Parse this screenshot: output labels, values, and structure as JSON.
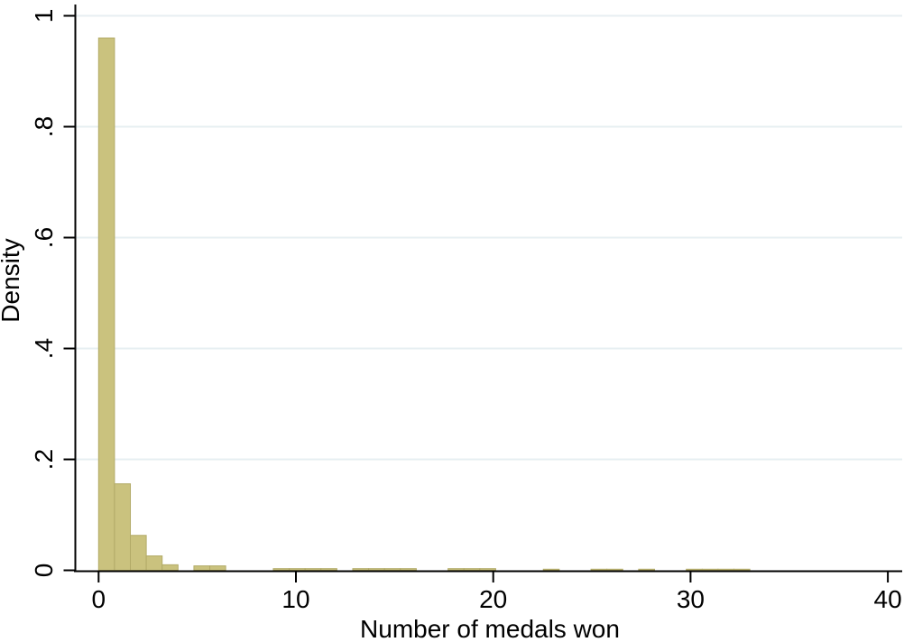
{
  "chart_data": {
    "type": "bar",
    "subtype": "histogram",
    "title": "",
    "xlabel": "Number of medals won",
    "ylabel": "Density",
    "xlim": [
      -1.2,
      40.8
    ],
    "ylim": [
      0,
      1
    ],
    "x_ticks": [
      0,
      10,
      20,
      30,
      40
    ],
    "x_tick_labels": [
      "0",
      "10",
      "20",
      "30",
      "40"
    ],
    "y_ticks": [
      0,
      0.2,
      0.4,
      0.6,
      0.8,
      1
    ],
    "y_tick_labels": [
      "0",
      ".2",
      ".4",
      ".6",
      ".8",
      "1"
    ],
    "grid": "horizontal gridlines at y ticks, full plot width",
    "legend": "none",
    "bin_width": 0.805,
    "bars": [
      {
        "x": 0.0,
        "density": 0.96
      },
      {
        "x": 0.805,
        "density": 0.156
      },
      {
        "x": 1.61,
        "density": 0.063
      },
      {
        "x": 2.415,
        "density": 0.026
      },
      {
        "x": 3.22,
        "density": 0.01
      },
      {
        "x": 4.83,
        "density": 0.008
      },
      {
        "x": 5.635,
        "density": 0.008
      },
      {
        "x": 8.855,
        "density": 0.003
      },
      {
        "x": 9.66,
        "density": 0.003
      },
      {
        "x": 10.465,
        "density": 0.003
      },
      {
        "x": 11.27,
        "density": 0.003
      },
      {
        "x": 12.88,
        "density": 0.003
      },
      {
        "x": 13.685,
        "density": 0.003
      },
      {
        "x": 14.49,
        "density": 0.003
      },
      {
        "x": 15.295,
        "density": 0.003
      },
      {
        "x": 17.71,
        "density": 0.003
      },
      {
        "x": 18.515,
        "density": 0.003
      },
      {
        "x": 19.32,
        "density": 0.003
      },
      {
        "x": 22.54,
        "density": 0.002
      },
      {
        "x": 24.955,
        "density": 0.002
      },
      {
        "x": 25.76,
        "density": 0.002
      },
      {
        "x": 27.37,
        "density": 0.002
      },
      {
        "x": 29.785,
        "density": 0.002
      },
      {
        "x": 30.59,
        "density": 0.002
      },
      {
        "x": 31.395,
        "density": 0.002
      },
      {
        "x": 32.2,
        "density": 0.002
      }
    ],
    "colors": {
      "bar_fill": "#cac27e",
      "bar_stroke": "#b3ab68",
      "gridline": "#e7eff2",
      "axis": "#000000",
      "text": "#000000",
      "background": "#ffffff"
    }
  }
}
